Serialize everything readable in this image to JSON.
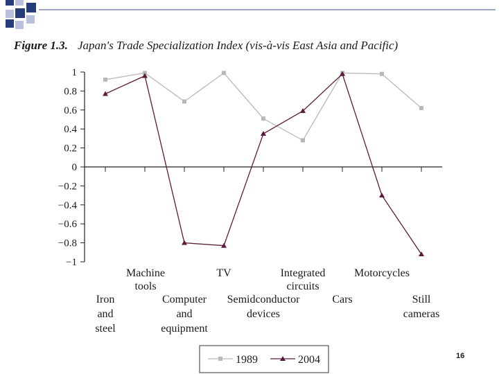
{
  "figure": {
    "number": "Figure 1.3.",
    "title": "Japan's Trade Specialization Index (vis-à-vis East Asia and Pacific)"
  },
  "page_number": "16",
  "chart_data": {
    "type": "line",
    "title": "Japan's Trade Specialization Index (vis-à-vis East Asia and Pacific)",
    "xlabel": "",
    "ylabel": "",
    "ylim": [
      -1,
      1
    ],
    "yticks": [
      "1",
      "0.8",
      "0.6",
      "0.4",
      "0.2",
      "0",
      "−0.2",
      "−0.4",
      "−0.6",
      "−0.8",
      "−1"
    ],
    "grid": false,
    "legend_position": "bottom-center",
    "categories": [
      "Iron and steel",
      "Machine tools",
      "Computer and equipment",
      "TV",
      "Semidconductor devices",
      "Integrated circuits",
      "Cars",
      "Motorcycles",
      "Still cameras"
    ],
    "category_labels_upper": [
      {
        "index": 1,
        "lines": [
          "Machine",
          "tools"
        ]
      },
      {
        "index": 3,
        "lines": [
          "TV"
        ]
      },
      {
        "index": 5,
        "lines": [
          "Integrated",
          "circuits"
        ]
      },
      {
        "index": 7,
        "lines": [
          "Motorcycles"
        ]
      }
    ],
    "category_labels_lower": [
      {
        "index": 0,
        "lines": [
          "Iron",
          "and",
          "steel"
        ]
      },
      {
        "index": 2,
        "lines": [
          "Computer",
          "and",
          "equipment"
        ]
      },
      {
        "index": 4,
        "lines": [
          "Semidconductor",
          "devices"
        ]
      },
      {
        "index": 6,
        "lines": [
          "Cars"
        ]
      },
      {
        "index": 8,
        "lines": [
          "Still",
          "cameras"
        ]
      }
    ],
    "series": [
      {
        "name": "1989",
        "values": [
          0.92,
          0.99,
          0.69,
          0.99,
          0.51,
          0.28,
          0.99,
          0.98,
          0.62
        ],
        "color": "#b8b8b8",
        "marker": "square"
      },
      {
        "name": "2004",
        "values": [
          0.77,
          0.96,
          -0.8,
          -0.83,
          0.35,
          0.59,
          0.98,
          -0.3,
          -0.92
        ],
        "color": "#5c1a3a",
        "marker": "triangle"
      }
    ]
  },
  "colors": {
    "deco_navy": "#283c7a",
    "deco_light": "#b9c2dc",
    "axis": "#222222"
  }
}
